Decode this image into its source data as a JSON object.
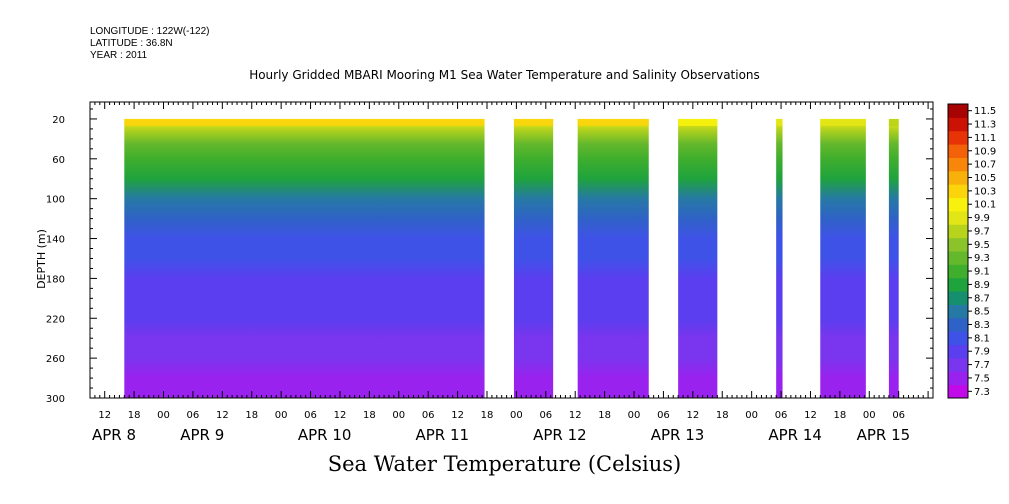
{
  "header": {
    "longitude": "LONGITUDE : 122W(-122)",
    "latitude": "LATITUDE : 36.8N",
    "year": "YEAR : 2011"
  },
  "chart_data": {
    "type": "heatmap",
    "title": "Hourly Gridded MBARI Mooring M1 Sea Water Temperature and Salinity Observations",
    "xlabel": "",
    "ylabel": "DEPTH (m)",
    "colorbar_label": "Sea Water Temperature (Celsius)",
    "x_unit": "hours since Apr 8 00:00, 2011",
    "xlim": [
      9,
      181
    ],
    "ylim": [
      300,
      3
    ],
    "y_ticks": [
      20,
      60,
      100,
      140,
      180,
      220,
      260,
      300
    ],
    "x_hour_ticks": [
      {
        "t": 12,
        "label": "12"
      },
      {
        "t": 18,
        "label": "18"
      },
      {
        "t": 24,
        "label": "00"
      },
      {
        "t": 30,
        "label": "06"
      },
      {
        "t": 36,
        "label": "12"
      },
      {
        "t": 42,
        "label": "18"
      },
      {
        "t": 48,
        "label": "00"
      },
      {
        "t": 54,
        "label": "06"
      },
      {
        "t": 60,
        "label": "12"
      },
      {
        "t": 66,
        "label": "18"
      },
      {
        "t": 72,
        "label": "00"
      },
      {
        "t": 78,
        "label": "06"
      },
      {
        "t": 84,
        "label": "12"
      },
      {
        "t": 90,
        "label": "18"
      },
      {
        "t": 96,
        "label": "00"
      },
      {
        "t": 102,
        "label": "06"
      },
      {
        "t": 108,
        "label": "12"
      },
      {
        "t": 114,
        "label": "18"
      },
      {
        "t": 120,
        "label": "00"
      },
      {
        "t": 126,
        "label": "06"
      },
      {
        "t": 132,
        "label": "12"
      },
      {
        "t": 138,
        "label": "18"
      },
      {
        "t": 144,
        "label": "00"
      },
      {
        "t": 150,
        "label": "06"
      },
      {
        "t": 156,
        "label": "12"
      },
      {
        "t": 162,
        "label": "18"
      },
      {
        "t": 168,
        "label": "00"
      },
      {
        "t": 174,
        "label": "06"
      }
    ],
    "x_day_labels": [
      {
        "t": 9,
        "label": "APR  8"
      },
      {
        "t": 27,
        "label": "APR  9"
      },
      {
        "t": 51,
        "label": "APR 10"
      },
      {
        "t": 75,
        "label": "APR 11"
      },
      {
        "t": 99,
        "label": "APR 12"
      },
      {
        "t": 123,
        "label": "APR 13"
      },
      {
        "t": 147,
        "label": "APR 14"
      },
      {
        "t": 165,
        "label": "APR 15"
      }
    ],
    "data_segments": [
      {
        "start": 16,
        "end": 89.5,
        "surface_max": 10.4
      },
      {
        "start": 95.5,
        "end": 103.5,
        "surface_max": 10.3
      },
      {
        "start": 108.5,
        "end": 123,
        "surface_max": 10.4
      },
      {
        "start": 129,
        "end": 137,
        "surface_max": 10.1
      },
      {
        "start": 149,
        "end": 150.3,
        "surface_max": 9.9
      },
      {
        "start": 158,
        "end": 167.3,
        "surface_max": 10.0
      },
      {
        "start": 172,
        "end": 174,
        "surface_max": 9.8
      }
    ],
    "depth_profile": {
      "depth": [
        20,
        30,
        45,
        60,
        80,
        100,
        120,
        140,
        160,
        180,
        200,
        220,
        240,
        260,
        280,
        300
      ],
      "temperature": [
        10.2,
        9.7,
        9.4,
        9.2,
        8.9,
        8.6,
        8.4,
        8.2,
        8.1,
        8.0,
        7.95,
        7.9,
        7.85,
        7.75,
        7.6,
        7.5
      ]
    },
    "colorbar": {
      "levels": [
        7.3,
        7.5,
        7.7,
        7.9,
        8.1,
        8.3,
        8.5,
        8.7,
        8.9,
        9.1,
        9.3,
        9.5,
        9.7,
        9.9,
        10.1,
        10.3,
        10.5,
        10.7,
        10.9,
        11.1,
        11.3,
        11.5
      ],
      "colors": [
        "#c00be8",
        "#9a22ef",
        "#7a35ee",
        "#5a3eef",
        "#3f52e8",
        "#2f62c6",
        "#2679a4",
        "#168f6e",
        "#1fa33d",
        "#3fae2d",
        "#64b82c",
        "#8ac42a",
        "#b7d31c",
        "#e2e516",
        "#f7f10d",
        "#fbd40c",
        "#f8b10a",
        "#f7860a",
        "#f36108",
        "#e83306",
        "#cc1205",
        "#a80303"
      ]
    }
  }
}
